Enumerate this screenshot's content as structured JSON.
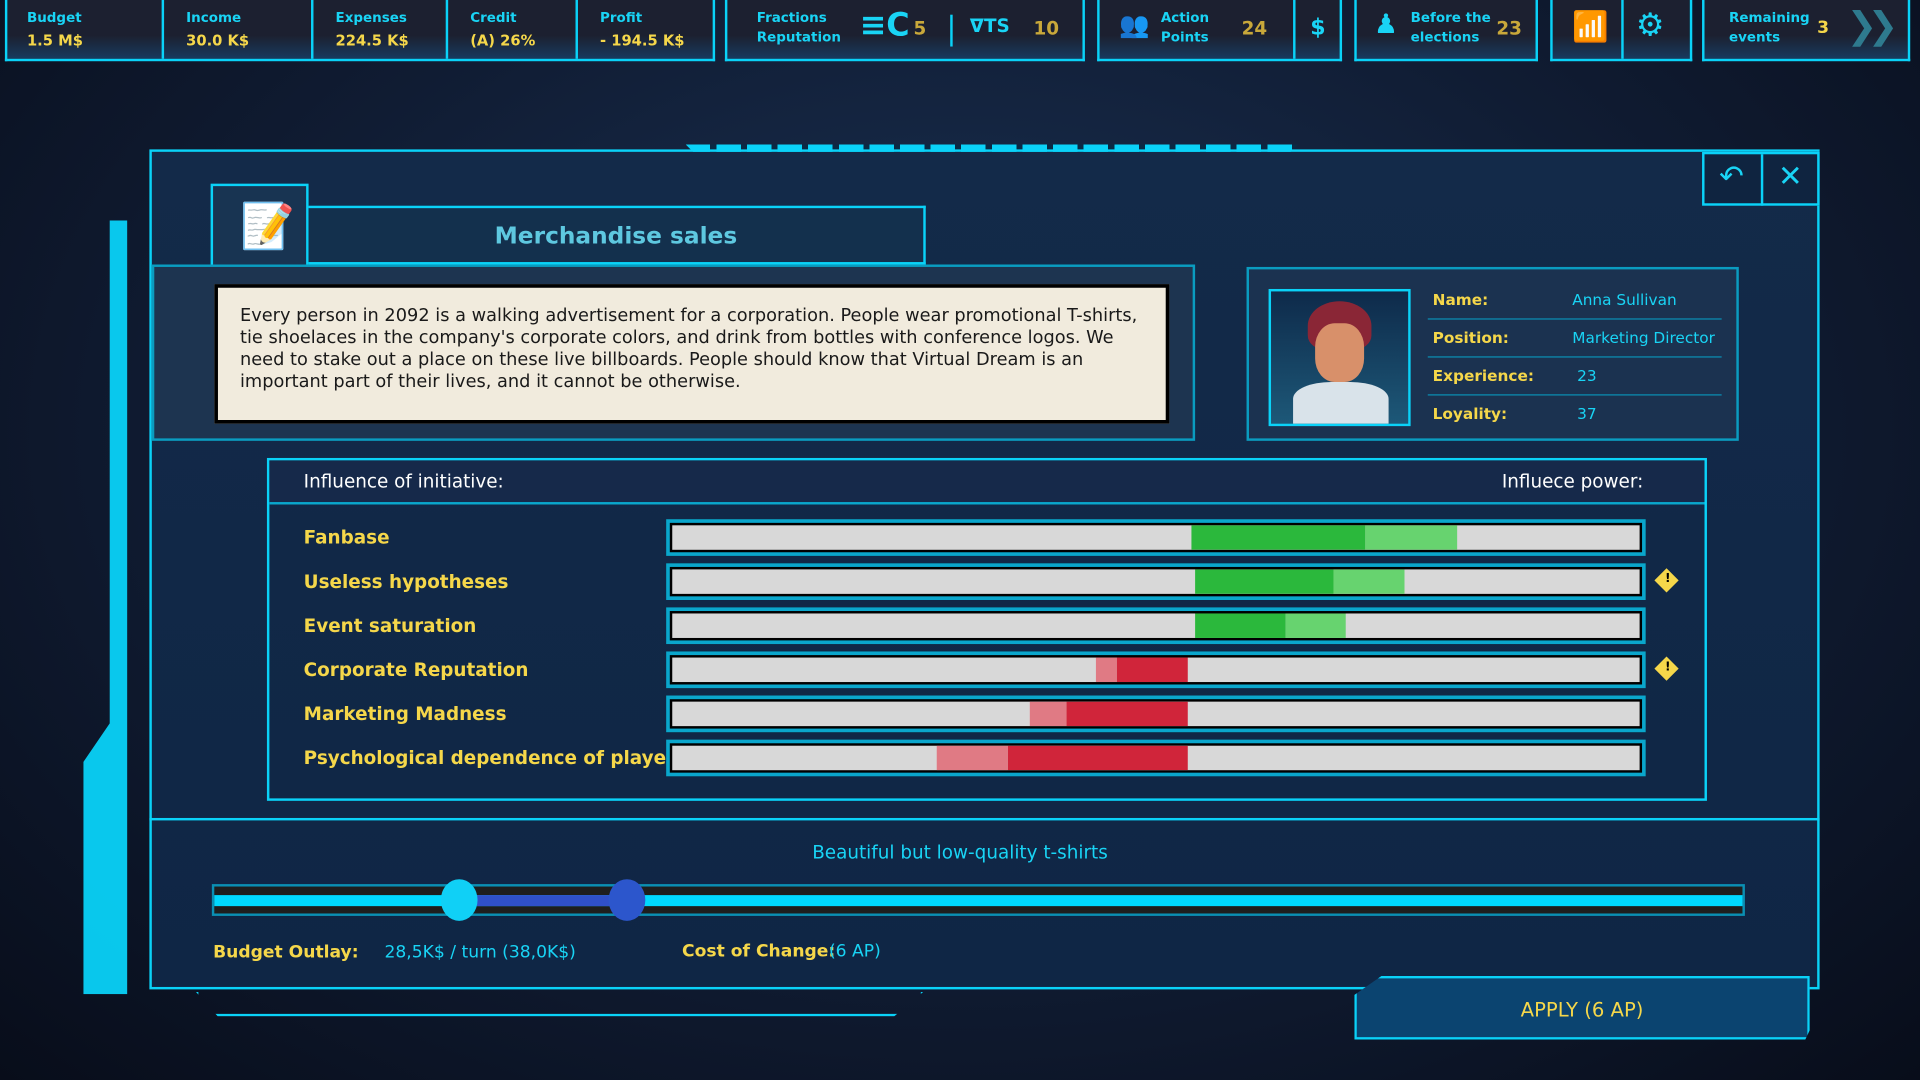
{
  "topbar": {
    "stats": [
      {
        "label": "Budget",
        "value": "1.5 M$"
      },
      {
        "label": "Income",
        "value": "30.0 K$"
      },
      {
        "label": "Expenses",
        "value": "224.5 K$"
      },
      {
        "label": "Credit",
        "value": "(A) 26%"
      },
      {
        "label": "Profit",
        "value": "- 194.5 K$"
      }
    ],
    "fractions": {
      "label_line1": "Fractions",
      "label_line2": "Reputation",
      "faction1_value": "5",
      "faction2_value": "10"
    },
    "action_points": {
      "label_line1": "Action",
      "label_line2": "Points",
      "value": "24",
      "currency_symbol": "$"
    },
    "elections": {
      "label_line1": "Before the",
      "label_line2": "elections",
      "value": "23"
    },
    "remaining": {
      "label_line1": "Remaining",
      "label_line2": "events",
      "value": "3"
    }
  },
  "dialog": {
    "title": "Merchandise sales",
    "description": "Every person in 2092 is a walking advertisement for a corporation. People wear promotional T-shirts, tie shoelaces in the company's corporate colors, and drink from bottles with conference logos. We need to stake out a place on these live billboards. People should know that Virtual Dream is an important part of their lives, and it cannot be otherwise.",
    "character": {
      "fields": [
        {
          "label": "Name:",
          "value": "Anna Sullivan"
        },
        {
          "label": "Position:",
          "value": "Marketing Director"
        },
        {
          "label": "Experience:",
          "value": "23"
        },
        {
          "label": "Loyality:",
          "value": "37"
        }
      ]
    },
    "influence": {
      "header_left": "Influence of initiative:",
      "header_right": "Influece power:",
      "rows": [
        {
          "label": "Fanbase",
          "type": "positive",
          "strong": [
            0.537,
            0.717
          ],
          "weak": [
            0.717,
            0.812
          ],
          "warning": false
        },
        {
          "label": "Useless hypotheses",
          "type": "positive",
          "strong": [
            0.54,
            0.683
          ],
          "weak": [
            0.683,
            0.757
          ],
          "warning": true
        },
        {
          "label": "Event saturation",
          "type": "positive",
          "strong": [
            0.54,
            0.634
          ],
          "weak": [
            0.634,
            0.696
          ],
          "warning": false
        },
        {
          "label": "Corporate Reputation",
          "type": "negative",
          "weak": [
            0.438,
            0.46
          ],
          "strong": [
            0.46,
            0.533
          ],
          "warning": true
        },
        {
          "label": "Marketing Madness",
          "type": "negative",
          "weak": [
            0.37,
            0.408
          ],
          "strong": [
            0.408,
            0.533
          ],
          "warning": false
        },
        {
          "label": "Psychological dependence of players",
          "type": "negative",
          "weak": [
            0.274,
            0.347
          ],
          "strong": [
            0.347,
            0.533
          ],
          "warning": false
        }
      ],
      "warning_symbol": "!"
    },
    "option_label": "Beautiful but low-quality t-shirts",
    "slider": {
      "current": 0.16,
      "selected": 0.27
    },
    "budget_outlay_label": "Budget Outlay:",
    "budget_outlay_value": "28,5K$ / turn (38,0K$)",
    "cost_label": "Cost of Change:",
    "cost_value": "(6 AP)",
    "apply_label": "APPLY (6 AP)"
  },
  "colors": {
    "accent": "#0ad2f8",
    "label_yellow": "#f5d74a",
    "green_strong": "#2bb83c",
    "green_weak": "#67d36f",
    "red_strong": "#d0253a",
    "red_weak": "#e07a84"
  }
}
